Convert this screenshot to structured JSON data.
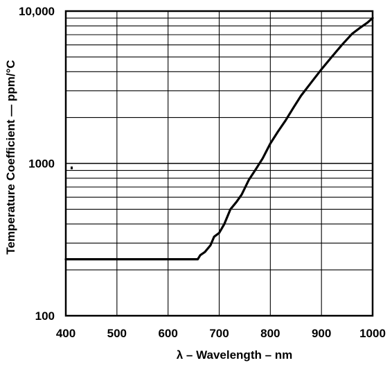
{
  "chart_data": {
    "type": "line",
    "title": "",
    "xlabel": "λ – Wavelength – nm",
    "ylabel": "Temperature Coefficient — ppm/°C",
    "xlim": [
      400,
      1000
    ],
    "ylim": [
      100,
      10000
    ],
    "yscale": "log",
    "grid": true,
    "x_ticks": [
      400,
      500,
      600,
      700,
      800,
      900,
      1000
    ],
    "x_tick_labels": [
      "400",
      "500",
      "600",
      "700",
      "800",
      "900",
      "1000"
    ],
    "y_ticks": [
      100,
      1000,
      10000
    ],
    "y_tick_labels": [
      "100",
      "1000",
      "10,000"
    ],
    "series": [
      {
        "name": "",
        "color": "#000000",
        "x": [
          400,
          500,
          600,
          658,
          663,
          672,
          683,
          690,
          700,
          710,
          722,
          734,
          744,
          758,
          772,
          785,
          800,
          815,
          830,
          845,
          860,
          880,
          900,
          920,
          940,
          960,
          975,
          990,
          1000
        ],
        "y": [
          235,
          235,
          235,
          235,
          250,
          262,
          290,
          330,
          350,
          400,
          500,
          560,
          625,
          780,
          920,
          1080,
          1350,
          1620,
          1920,
          2320,
          2780,
          3400,
          4150,
          5000,
          6000,
          7100,
          7750,
          8400,
          9000
        ]
      }
    ]
  }
}
